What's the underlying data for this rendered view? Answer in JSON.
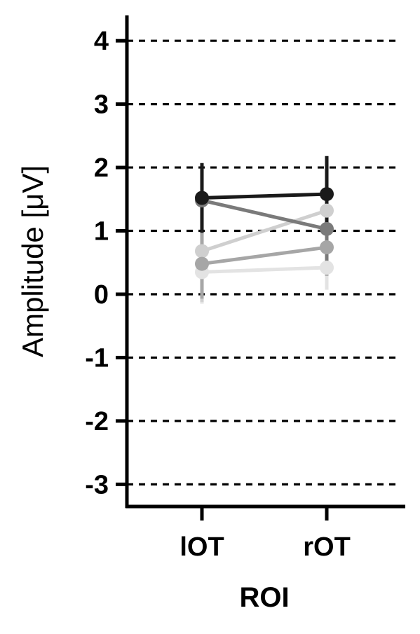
{
  "chart_data": {
    "type": "line",
    "title": "",
    "xlabel": "ROI",
    "ylabel": "Amplitude [μV]",
    "categories": [
      "lOT",
      "rOT"
    ],
    "ylim": [
      -3.35,
      4.4
    ],
    "yticks": [
      -3,
      -2,
      -1,
      0,
      1,
      2,
      3,
      4
    ],
    "ytick_labels": [
      "-3",
      "-2",
      "-1",
      "0",
      "1",
      "2",
      "3",
      "4"
    ],
    "grid": "horizontal dashed",
    "legend": "none",
    "series": [
      {
        "color": "#e3e3e3",
        "values": [
          0.35,
          0.42
        ],
        "error": [
          0.5,
          0.35
        ]
      },
      {
        "color": "#cfcfcf",
        "values": [
          0.68,
          1.32
        ],
        "error": [
          0.8,
          0.6
        ]
      },
      {
        "color": "#a6a6a6",
        "values": [
          0.48,
          0.74
        ],
        "error": [
          0.55,
          0.45
        ]
      },
      {
        "color": "#7a7a7a",
        "values": [
          1.48,
          1.03
        ],
        "error": [
          0.45,
          0.55
        ]
      },
      {
        "color": "#1a1a1a",
        "values": [
          1.52,
          1.58
        ],
        "error": [
          0.55,
          0.6
        ]
      }
    ]
  }
}
